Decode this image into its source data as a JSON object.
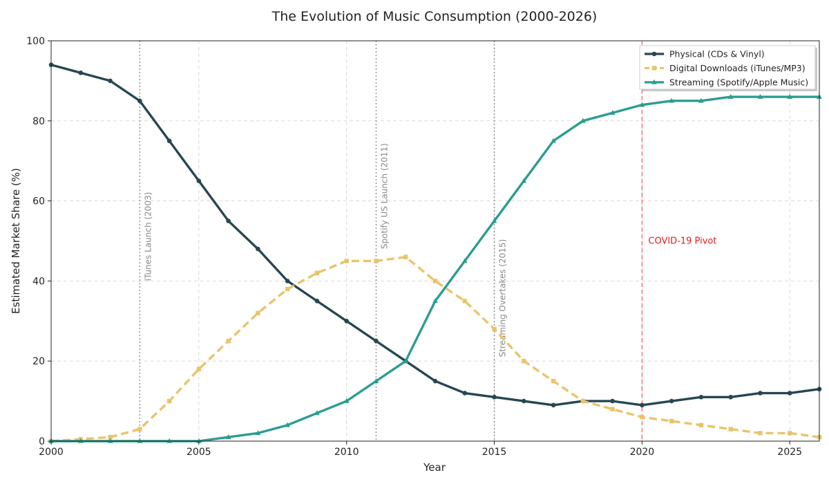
{
  "chart_data": {
    "type": "line",
    "title": "The Evolution of Music Consumption (2000-2026)",
    "xlabel": "Year",
    "ylabel": "Estimated Market Share (%)",
    "xlim": [
      2000,
      2026
    ],
    "ylim": [
      0,
      100
    ],
    "xticks": [
      "2000",
      "2005",
      "2010",
      "2015",
      "2020",
      "2025"
    ],
    "yticks": [
      "0",
      "20",
      "40",
      "60",
      "80",
      "100"
    ],
    "grid": true,
    "legend_position": "top-right",
    "x": [
      2000,
      2001,
      2002,
      2003,
      2004,
      2005,
      2006,
      2007,
      2008,
      2009,
      2010,
      2011,
      2012,
      2013,
      2014,
      2015,
      2016,
      2017,
      2018,
      2019,
      2020,
      2021,
      2022,
      2023,
      2024,
      2025,
      2026
    ],
    "series": [
      {
        "name": "Physical (CDs & Vinyl)",
        "color": "#264653",
        "style": "solid",
        "marker": "circle",
        "values": [
          94,
          92,
          90,
          85,
          75,
          65,
          55,
          48,
          40,
          35,
          30,
          25,
          20,
          15,
          12,
          11,
          10,
          9,
          10,
          10,
          9,
          10,
          11,
          11,
          12,
          12,
          13
        ]
      },
      {
        "name": "Digital Downloads (iTunes/MP3)",
        "color": "#E9C46A",
        "style": "dashed",
        "marker": "square",
        "values": [
          0,
          0.5,
          1,
          3,
          10,
          18,
          25,
          32,
          38,
          42,
          45,
          45,
          46,
          40,
          35,
          28,
          20,
          15,
          10,
          8,
          6,
          5,
          4,
          3,
          2,
          2,
          1
        ]
      },
      {
        "name": "Streaming (Spotify/Apple Music)",
        "color": "#2A9D8F",
        "style": "solid",
        "marker": "triangle",
        "values": [
          0,
          0,
          0,
          0,
          0,
          0,
          1,
          2,
          4,
          7,
          10,
          15,
          20,
          35,
          45,
          55,
          65,
          75,
          80,
          82,
          84,
          85,
          85,
          86,
          86,
          86,
          86
        ]
      }
    ],
    "events": [
      {
        "year": 2003,
        "label": "iTunes Launch (2003)",
        "color": "#999999",
        "label_y": 40
      },
      {
        "year": 2011,
        "label": "Spotify US Launch (2011)",
        "color": "#999999",
        "label_y": 48
      },
      {
        "year": 2015,
        "label": "Streaming Overtakes (2015)",
        "color": "#999999",
        "label_y": 21
      }
    ],
    "annotation": {
      "year": 2020,
      "label": "COVID-19 Pivot",
      "color": "#ff6b6b",
      "text_color": "#e31a1c",
      "label_y": 50
    }
  }
}
